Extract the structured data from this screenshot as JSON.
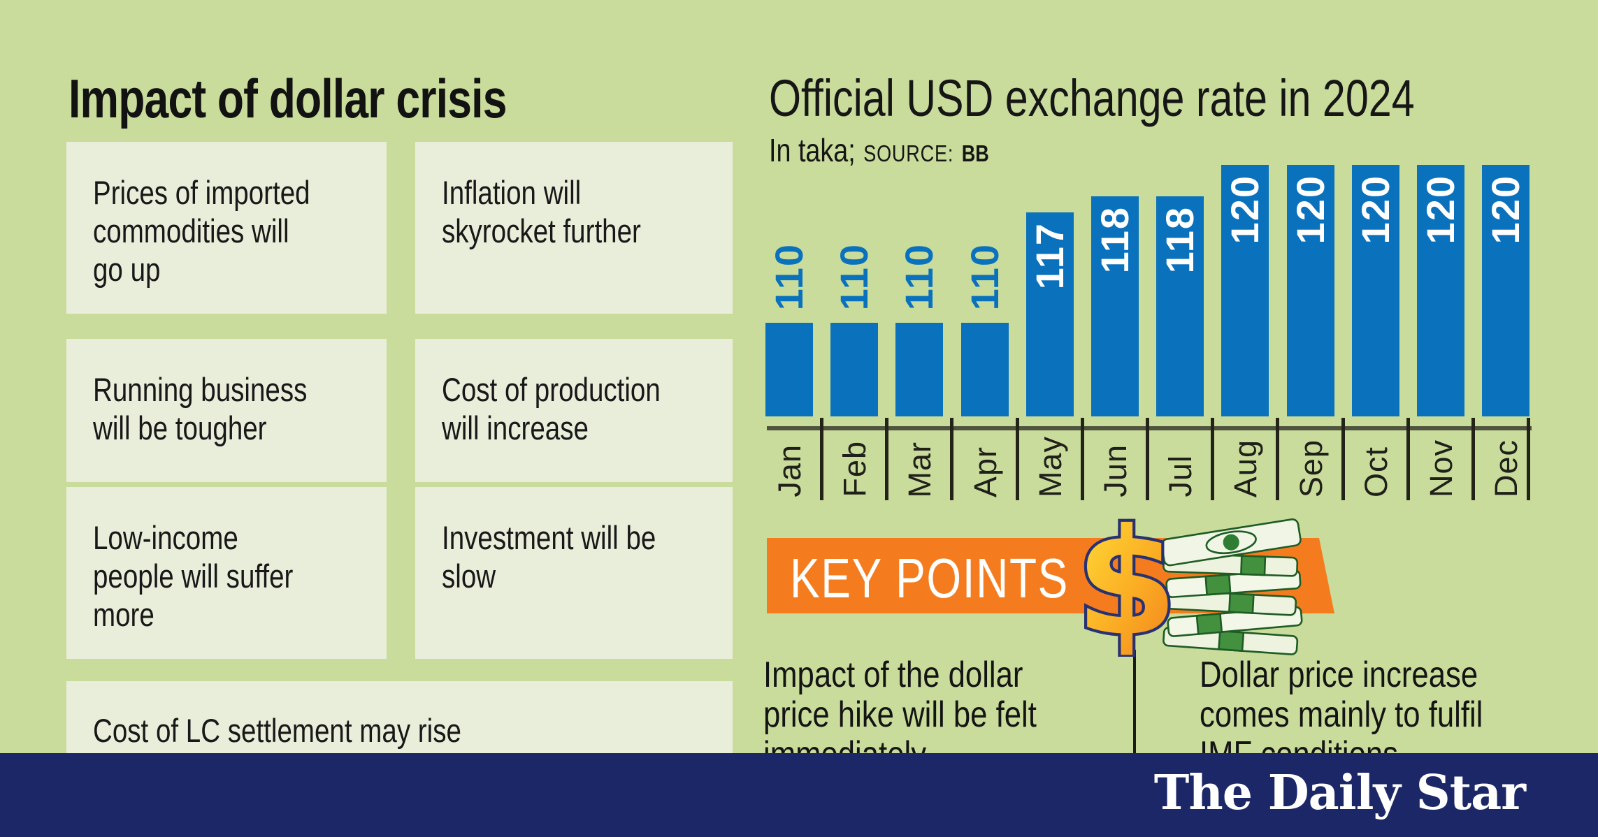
{
  "left_panel": {
    "title": "Impact of dollar crisis",
    "boxes": [
      {
        "text": "Prices of imported\ncommodities will\ngo up"
      },
      {
        "text": "Inflation will\nskyrocket further"
      },
      {
        "text": "Running business\nwill be tougher"
      },
      {
        "text": "Cost of production\nwill increase"
      },
      {
        "text": "Low-income\npeople will suffer\nmore"
      },
      {
        "text": "Investment will be\nslow"
      },
      {
        "text": "Cost of LC settlement may rise"
      }
    ]
  },
  "chart": {
    "title": "Official USD exchange rate in 2024",
    "note_unit": "In taka;",
    "note_source_label": "SOURCE:",
    "note_source_value": "BB"
  },
  "chart_data": {
    "type": "bar",
    "title": "Official USD exchange rate in 2024",
    "subtitle": "In taka; SOURCE: BB",
    "unit": "taka",
    "source": "BB",
    "categories": [
      "Jan",
      "Feb",
      "Mar",
      "Apr",
      "May",
      "Jun",
      "Jul",
      "Aug",
      "Sep",
      "Oct",
      "Nov",
      "Dec"
    ],
    "values": [
      110,
      110,
      110,
      110,
      117,
      118,
      118,
      120,
      120,
      120,
      120,
      120
    ],
    "bar_color": "#0a71bd",
    "value_labels": "rotated 90deg, blue above short bars, white inside tall bars",
    "xlabel": "",
    "ylabel": "",
    "ylim_visual_note": "truncated scale, bars not zero-based",
    "grid": false,
    "legend": false
  },
  "key_points": {
    "banner_label": "KEY POINTS",
    "icon": "dollar-sign-money-stack-icon",
    "items": [
      {
        "text": "Impact of the dollar\nprice hike will be felt\nimmediately"
      },
      {
        "text": "Dollar price increase\ncomes mainly to fulfil\nIMF conditions"
      }
    ]
  },
  "footer": {
    "brand": "The Daily Star"
  },
  "colors": {
    "background": "#c9dc9b",
    "box_fill": "#e9eeda",
    "bar_blue": "#0a71bd",
    "banner_orange": "#f57c1e",
    "footer_navy": "#1c2767",
    "axis_olive": "#50543f",
    "text_dark": "#151515",
    "white": "#ffffff"
  }
}
